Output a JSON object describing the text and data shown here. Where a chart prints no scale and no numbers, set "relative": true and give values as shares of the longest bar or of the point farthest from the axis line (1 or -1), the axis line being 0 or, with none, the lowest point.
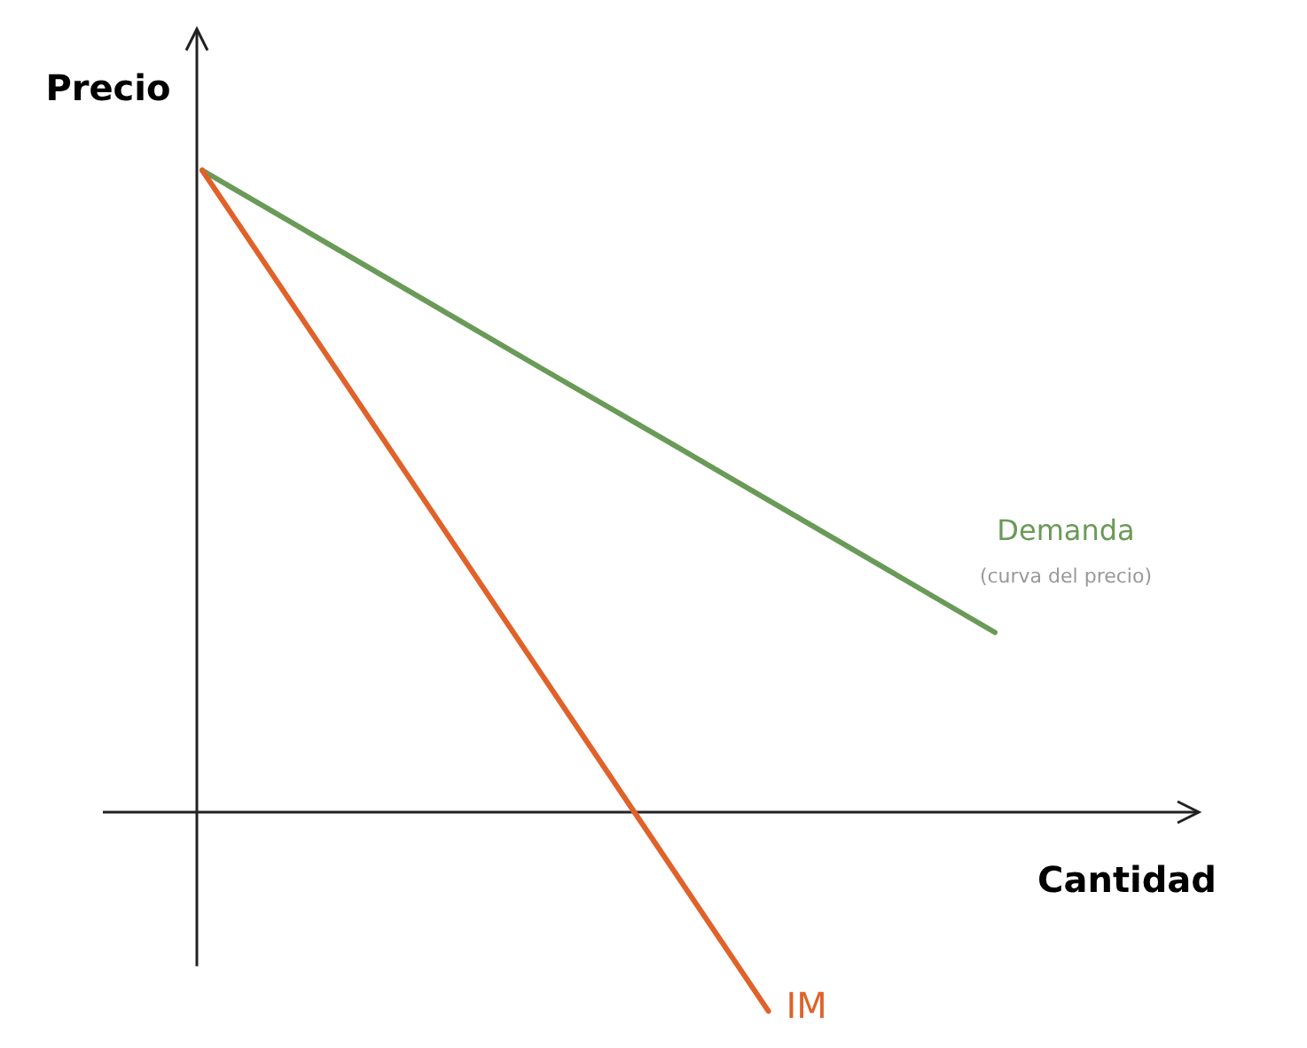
{
  "chart_data": {
    "type": "line",
    "relative": true,
    "xlabel": "Cantidad",
    "ylabel": "Precio",
    "legend": false,
    "marker": "none",
    "line_style": "solid",
    "categories": [
      null,
      null,
      null,
      null,
      null,
      null,
      null,
      null
    ],
    "series": [
      {
        "name": "Demanda",
        "color": "#6a9a57",
        "values": [
          1,
          0.897,
          0.794,
          0.691,
          0.589,
          0.486,
          0.383,
          0.28
        ]
      },
      {
        "name": "IM",
        "color": "#e0622a",
        "values": [
          1,
          0.738,
          0.476,
          0.214,
          -0.048,
          -0.31,
          null,
          null
        ]
      }
    ],
    "annotations": [
      "(curva del precio)"
    ]
  }
}
